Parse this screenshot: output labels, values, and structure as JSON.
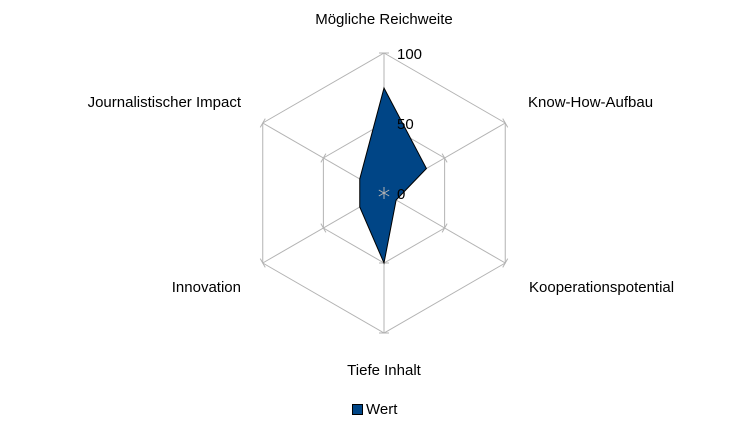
{
  "chart_data": {
    "type": "radar",
    "categories": [
      "Mögliche Reichweite",
      "Know-How-Aufbau",
      "Kooperationspotential",
      "Tiefe Inhalt",
      "Innovation",
      "Journalistischer Impact"
    ],
    "series": [
      {
        "name": "Wert",
        "values": [
          75,
          35,
          10,
          50,
          20,
          20
        ],
        "color": "#004586"
      }
    ],
    "rlim": [
      0,
      100
    ],
    "ticks": [
      0,
      50,
      100
    ],
    "legend": "bottom",
    "grid": true
  }
}
